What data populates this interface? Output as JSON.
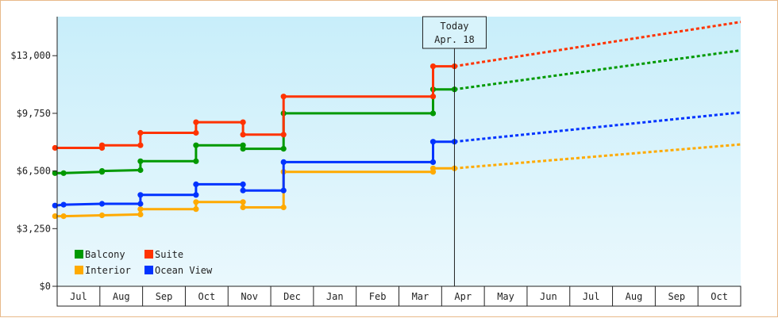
{
  "chart_data": {
    "type": "line",
    "title": "",
    "xlabel": "",
    "ylabel": "",
    "ylim": [
      0,
      15200
    ],
    "y_ticks": [
      {
        "value": 0,
        "label": "$0"
      },
      {
        "value": 3250,
        "label": "$3,250"
      },
      {
        "value": 6500,
        "label": "$6,500"
      },
      {
        "value": 9750,
        "label": "$9,750"
      },
      {
        "value": 13000,
        "label": "$13,000"
      }
    ],
    "x_ticks": [
      "Jul",
      "Aug",
      "Sep",
      "Oct",
      "Nov",
      "Dec",
      "Jan",
      "Feb",
      "Mar",
      "Apr",
      "May",
      "Jun",
      "Jul",
      "Aug",
      "Sep",
      "Oct"
    ],
    "x_range": [
      0,
      16
    ],
    "grid": false,
    "background": "gradient light blue",
    "legend_placement": "bottom-left",
    "today_marker": {
      "line1": "Today",
      "line2": "Apr. 18",
      "x": 9.3
    },
    "series": [
      {
        "name": "Balcony",
        "color": "#009900",
        "points": [
          [
            -0.05,
            6380
          ],
          [
            0.15,
            6380
          ],
          [
            1.05,
            6450
          ],
          [
            1.05,
            6500
          ],
          [
            1.95,
            6550
          ],
          [
            1.95,
            7050
          ],
          [
            3.25,
            7050
          ],
          [
            3.25,
            7950
          ],
          [
            4.35,
            7950
          ],
          [
            4.35,
            7750
          ],
          [
            5.3,
            7750
          ],
          [
            5.3,
            9750
          ],
          [
            8.8,
            9750
          ],
          [
            8.8,
            11100
          ],
          [
            9.3,
            11100
          ]
        ],
        "forecast": [
          [
            9.3,
            11100
          ],
          [
            16.0,
            13300
          ]
        ]
      },
      {
        "name": "Suite",
        "color": "#ff3300",
        "points": [
          [
            -0.05,
            7800
          ],
          [
            1.05,
            7800
          ],
          [
            1.05,
            7950
          ],
          [
            1.95,
            7950
          ],
          [
            1.95,
            8650
          ],
          [
            3.25,
            8650
          ],
          [
            3.25,
            9250
          ],
          [
            4.35,
            9250
          ],
          [
            4.35,
            8550
          ],
          [
            5.3,
            8550
          ],
          [
            5.3,
            10700
          ],
          [
            8.8,
            10700
          ],
          [
            8.8,
            12400
          ],
          [
            9.3,
            12400
          ]
        ],
        "forecast": [
          [
            9.3,
            12400
          ],
          [
            16.0,
            14900
          ]
        ]
      },
      {
        "name": "Interior",
        "color": "#ffaa00",
        "points": [
          [
            -0.05,
            3950
          ],
          [
            0.15,
            3950
          ],
          [
            1.05,
            4000
          ],
          [
            1.95,
            4050
          ],
          [
            1.95,
            4350
          ],
          [
            3.25,
            4350
          ],
          [
            3.25,
            4750
          ],
          [
            4.35,
            4750
          ],
          [
            4.35,
            4450
          ],
          [
            5.3,
            4450
          ],
          [
            5.3,
            6450
          ],
          [
            8.8,
            6450
          ],
          [
            8.8,
            6650
          ],
          [
            9.3,
            6650
          ]
        ],
        "forecast": [
          [
            9.3,
            6650
          ],
          [
            16.0,
            8000
          ]
        ]
      },
      {
        "name": "Ocean View",
        "color": "#0033ff",
        "points": [
          [
            -0.05,
            4550
          ],
          [
            0.15,
            4600
          ],
          [
            1.05,
            4650
          ],
          [
            1.95,
            4650
          ],
          [
            1.95,
            5150
          ],
          [
            3.25,
            5150
          ],
          [
            3.25,
            5750
          ],
          [
            4.35,
            5750
          ],
          [
            4.35,
            5400
          ],
          [
            5.3,
            5400
          ],
          [
            5.3,
            7000
          ],
          [
            8.8,
            7000
          ],
          [
            8.8,
            8150
          ],
          [
            9.3,
            8150
          ]
        ],
        "forecast": [
          [
            9.3,
            8150
          ],
          [
            16.0,
            9800
          ]
        ]
      }
    ]
  }
}
